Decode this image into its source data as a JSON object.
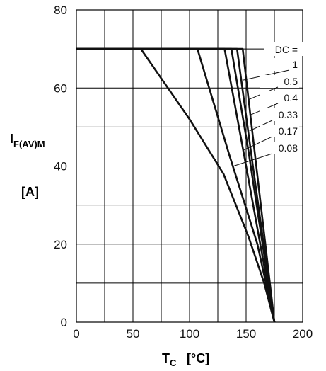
{
  "chart_data": {
    "type": "line",
    "xlabel": {
      "main": "T",
      "sub": "C",
      "unit": "[°C]"
    },
    "ylabel": {
      "main": "I",
      "sub": "F(AV)M",
      "unit": "[A]"
    },
    "xlim": [
      0,
      200
    ],
    "ylim": [
      0,
      80
    ],
    "xticks": [
      0,
      50,
      100,
      150,
      200
    ],
    "yticks": [
      0,
      20,
      40,
      60,
      80
    ],
    "x_grid": [
      0,
      25,
      50,
      75,
      100,
      125,
      150,
      175,
      200
    ],
    "y_grid": [
      0,
      10,
      20,
      30,
      40,
      50,
      60,
      70,
      80
    ],
    "grid": true,
    "legend_title": "DC =",
    "series": [
      {
        "name": "1",
        "points": [
          [
            0,
            70
          ],
          [
            147,
            70
          ],
          [
            175,
            0
          ]
        ]
      },
      {
        "name": "0.5",
        "points": [
          [
            0,
            70
          ],
          [
            142,
            70
          ],
          [
            156,
            40
          ],
          [
            175,
            0
          ]
        ]
      },
      {
        "name": "0.4",
        "points": [
          [
            0,
            70
          ],
          [
            137,
            70
          ],
          [
            152,
            44
          ],
          [
            175,
            0
          ]
        ]
      },
      {
        "name": "0.33",
        "points": [
          [
            0,
            70
          ],
          [
            131,
            70
          ],
          [
            150,
            40
          ],
          [
            175,
            0
          ]
        ]
      },
      {
        "name": "0.17",
        "points": [
          [
            0,
            70
          ],
          [
            107,
            70
          ],
          [
            135,
            43
          ],
          [
            160,
            20
          ],
          [
            175,
            0
          ]
        ]
      },
      {
        "name": "0.08",
        "points": [
          [
            0,
            70
          ],
          [
            57,
            70
          ],
          [
            100,
            52
          ],
          [
            130,
            38
          ],
          [
            152,
            22
          ],
          [
            166,
            10
          ],
          [
            175,
            0
          ]
        ]
      }
    ],
    "legend_leader_anchors": [
      {
        "label": "1",
        "point": [
          147,
          62
        ]
      },
      {
        "label": "0.5",
        "point": [
          152,
          57
        ]
      },
      {
        "label": "0.4",
        "point": [
          153,
          53
        ]
      },
      {
        "label": "0.33",
        "point": [
          153,
          49
        ]
      },
      {
        "label": "0.17",
        "point": [
          147,
          44
        ]
      },
      {
        "label": "0.08",
        "point": [
          139,
          40
        ]
      }
    ]
  }
}
